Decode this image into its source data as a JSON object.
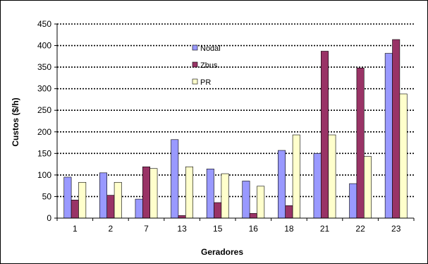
{
  "chart_data": {
    "type": "bar",
    "title": "",
    "xlabel": "Geradores",
    "ylabel": "Custos ($/h)",
    "categories": [
      "1",
      "2",
      "7",
      "13",
      "15",
      "16",
      "18",
      "21",
      "22",
      "23"
    ],
    "ylim": [
      0,
      450
    ],
    "yticks": [
      0,
      50,
      100,
      150,
      200,
      250,
      300,
      350,
      400,
      450
    ],
    "grid": true,
    "legend_position": "top-center",
    "series": [
      {
        "name": "Nodal",
        "color": "#9999FF",
        "values": [
          95,
          105,
          44,
          182,
          114,
          86,
          157,
          150,
          80,
          382
        ]
      },
      {
        "name": "Zbus",
        "color": "#993366",
        "values": [
          42,
          53,
          119,
          6,
          36,
          11,
          29,
          387,
          348,
          414
        ]
      },
      {
        "name": "PR",
        "color": "#FFFFCC",
        "values": [
          83,
          83,
          115,
          119,
          103,
          74,
          193,
          193,
          143,
          288
        ]
      }
    ]
  }
}
